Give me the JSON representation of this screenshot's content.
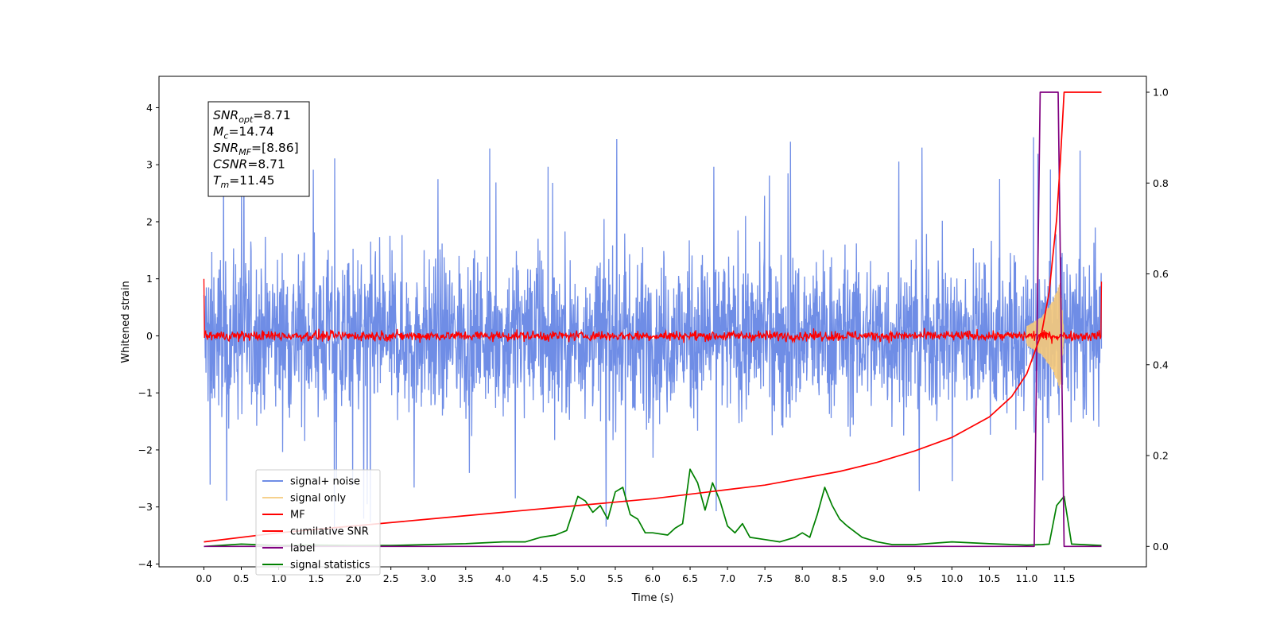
{
  "chart_data": {
    "type": "line",
    "xlabel": "Time (s)",
    "ylabel": "Whitened strain",
    "xlim": [
      -0.6,
      12.6
    ],
    "ylim": [
      -4.05,
      4.55
    ],
    "ylim_right": [
      -0.045,
      1.035
    ],
    "x_ticks": [
      "0.0",
      "0.5",
      "1.0",
      "1.5",
      "2.0",
      "2.5",
      "3.0",
      "3.5",
      "4.0",
      "4.5",
      "5.0",
      "5.5",
      "6.0",
      "6.5",
      "7.0",
      "7.5",
      "8.0",
      "8.5",
      "9.0",
      "9.5",
      "10.0",
      "10.5",
      "11.0",
      "11.5"
    ],
    "y_ticks": [
      "4",
      "3",
      "2",
      "1",
      "0",
      "−1",
      "−2",
      "−3",
      "−4"
    ],
    "y_ticks_right": [
      "1.0",
      "0.8",
      "0.6",
      "0.4",
      "0.2",
      "0.0"
    ],
    "grid": false,
    "legend_position": "lower-left",
    "annotation": {
      "lines": [
        {
          "main": "SNR",
          "sub": "opt",
          "rest": "=8.71"
        },
        {
          "main": "M",
          "sub": "c",
          "rest": "=14.74"
        },
        {
          "main": "SNR",
          "sub": "MF",
          "rest": "=[8.86]"
        },
        {
          "main": "CSNR",
          "sub": "",
          "rest": "=8.71"
        },
        {
          "main": "T",
          "sub": "m",
          "rest": "=11.45"
        }
      ]
    },
    "series": [
      {
        "name": "signal+ noise",
        "color": "#6f8de6",
        "axis": "left",
        "noise_amplitude": 2.6,
        "x_range": [
          0.0,
          12.0
        ]
      },
      {
        "name": "signal only",
        "color": "#f5c97a",
        "axis": "left",
        "envelope": [
          [
            11.0,
            0.18
          ],
          [
            11.2,
            0.35
          ],
          [
            11.35,
            0.65
          ],
          [
            11.45,
            1.0
          ],
          [
            11.5,
            0.0
          ]
        ]
      },
      {
        "name": "MF",
        "color": "#ff0000",
        "axis": "left",
        "noise_amplitude": 0.35,
        "x_range": [
          0.0,
          12.0
        ]
      },
      {
        "name": "cumilative SNR",
        "color": "#ff0000",
        "axis": "right",
        "x": [
          0.0,
          1.0,
          2.0,
          3.0,
          4.0,
          5.0,
          6.0,
          7.0,
          7.5,
          8.0,
          8.5,
          9.0,
          9.5,
          10.0,
          10.5,
          10.8,
          11.0,
          11.2,
          11.3,
          11.4,
          11.45,
          11.5,
          12.0
        ],
        "y": [
          0.01,
          0.03,
          0.045,
          0.06,
          0.075,
          0.09,
          0.105,
          0.125,
          0.135,
          0.15,
          0.165,
          0.185,
          0.21,
          0.24,
          0.285,
          0.33,
          0.38,
          0.47,
          0.56,
          0.72,
          0.85,
          1.0,
          1.0
        ]
      },
      {
        "name": "label",
        "color": "#800080",
        "axis": "right",
        "x": [
          0.0,
          11.1,
          11.18,
          11.42,
          11.5,
          12.0
        ],
        "y": [
          0.0,
          0.0,
          1.0,
          1.0,
          0.0,
          0.0
        ]
      },
      {
        "name": "signal statistics",
        "color": "#008000",
        "axis": "right",
        "x": [
          0.0,
          0.5,
          1.0,
          1.5,
          2.0,
          2.5,
          3.0,
          3.5,
          4.0,
          4.3,
          4.5,
          4.7,
          4.85,
          5.0,
          5.1,
          5.2,
          5.3,
          5.4,
          5.5,
          5.6,
          5.7,
          5.8,
          5.9,
          6.0,
          6.2,
          6.3,
          6.4,
          6.5,
          6.6,
          6.7,
          6.8,
          6.9,
          7.0,
          7.1,
          7.2,
          7.3,
          7.5,
          7.7,
          7.9,
          8.0,
          8.1,
          8.2,
          8.3,
          8.4,
          8.5,
          8.6,
          8.8,
          9.0,
          9.2,
          9.5,
          10.0,
          10.5,
          11.0,
          11.2,
          11.3,
          11.4,
          11.5,
          11.6,
          12.0
        ],
        "y": [
          0.0,
          0.005,
          0.002,
          0.003,
          0.002,
          0.002,
          0.004,
          0.006,
          0.01,
          0.01,
          0.02,
          0.025,
          0.035,
          0.11,
          0.1,
          0.075,
          0.09,
          0.06,
          0.12,
          0.13,
          0.07,
          0.06,
          0.03,
          0.03,
          0.025,
          0.04,
          0.05,
          0.17,
          0.14,
          0.08,
          0.14,
          0.1,
          0.045,
          0.03,
          0.05,
          0.02,
          0.015,
          0.01,
          0.02,
          0.03,
          0.02,
          0.07,
          0.13,
          0.09,
          0.06,
          0.045,
          0.02,
          0.01,
          0.004,
          0.004,
          0.01,
          0.006,
          0.003,
          0.004,
          0.005,
          0.09,
          0.11,
          0.005,
          0.002
        ]
      }
    ]
  }
}
